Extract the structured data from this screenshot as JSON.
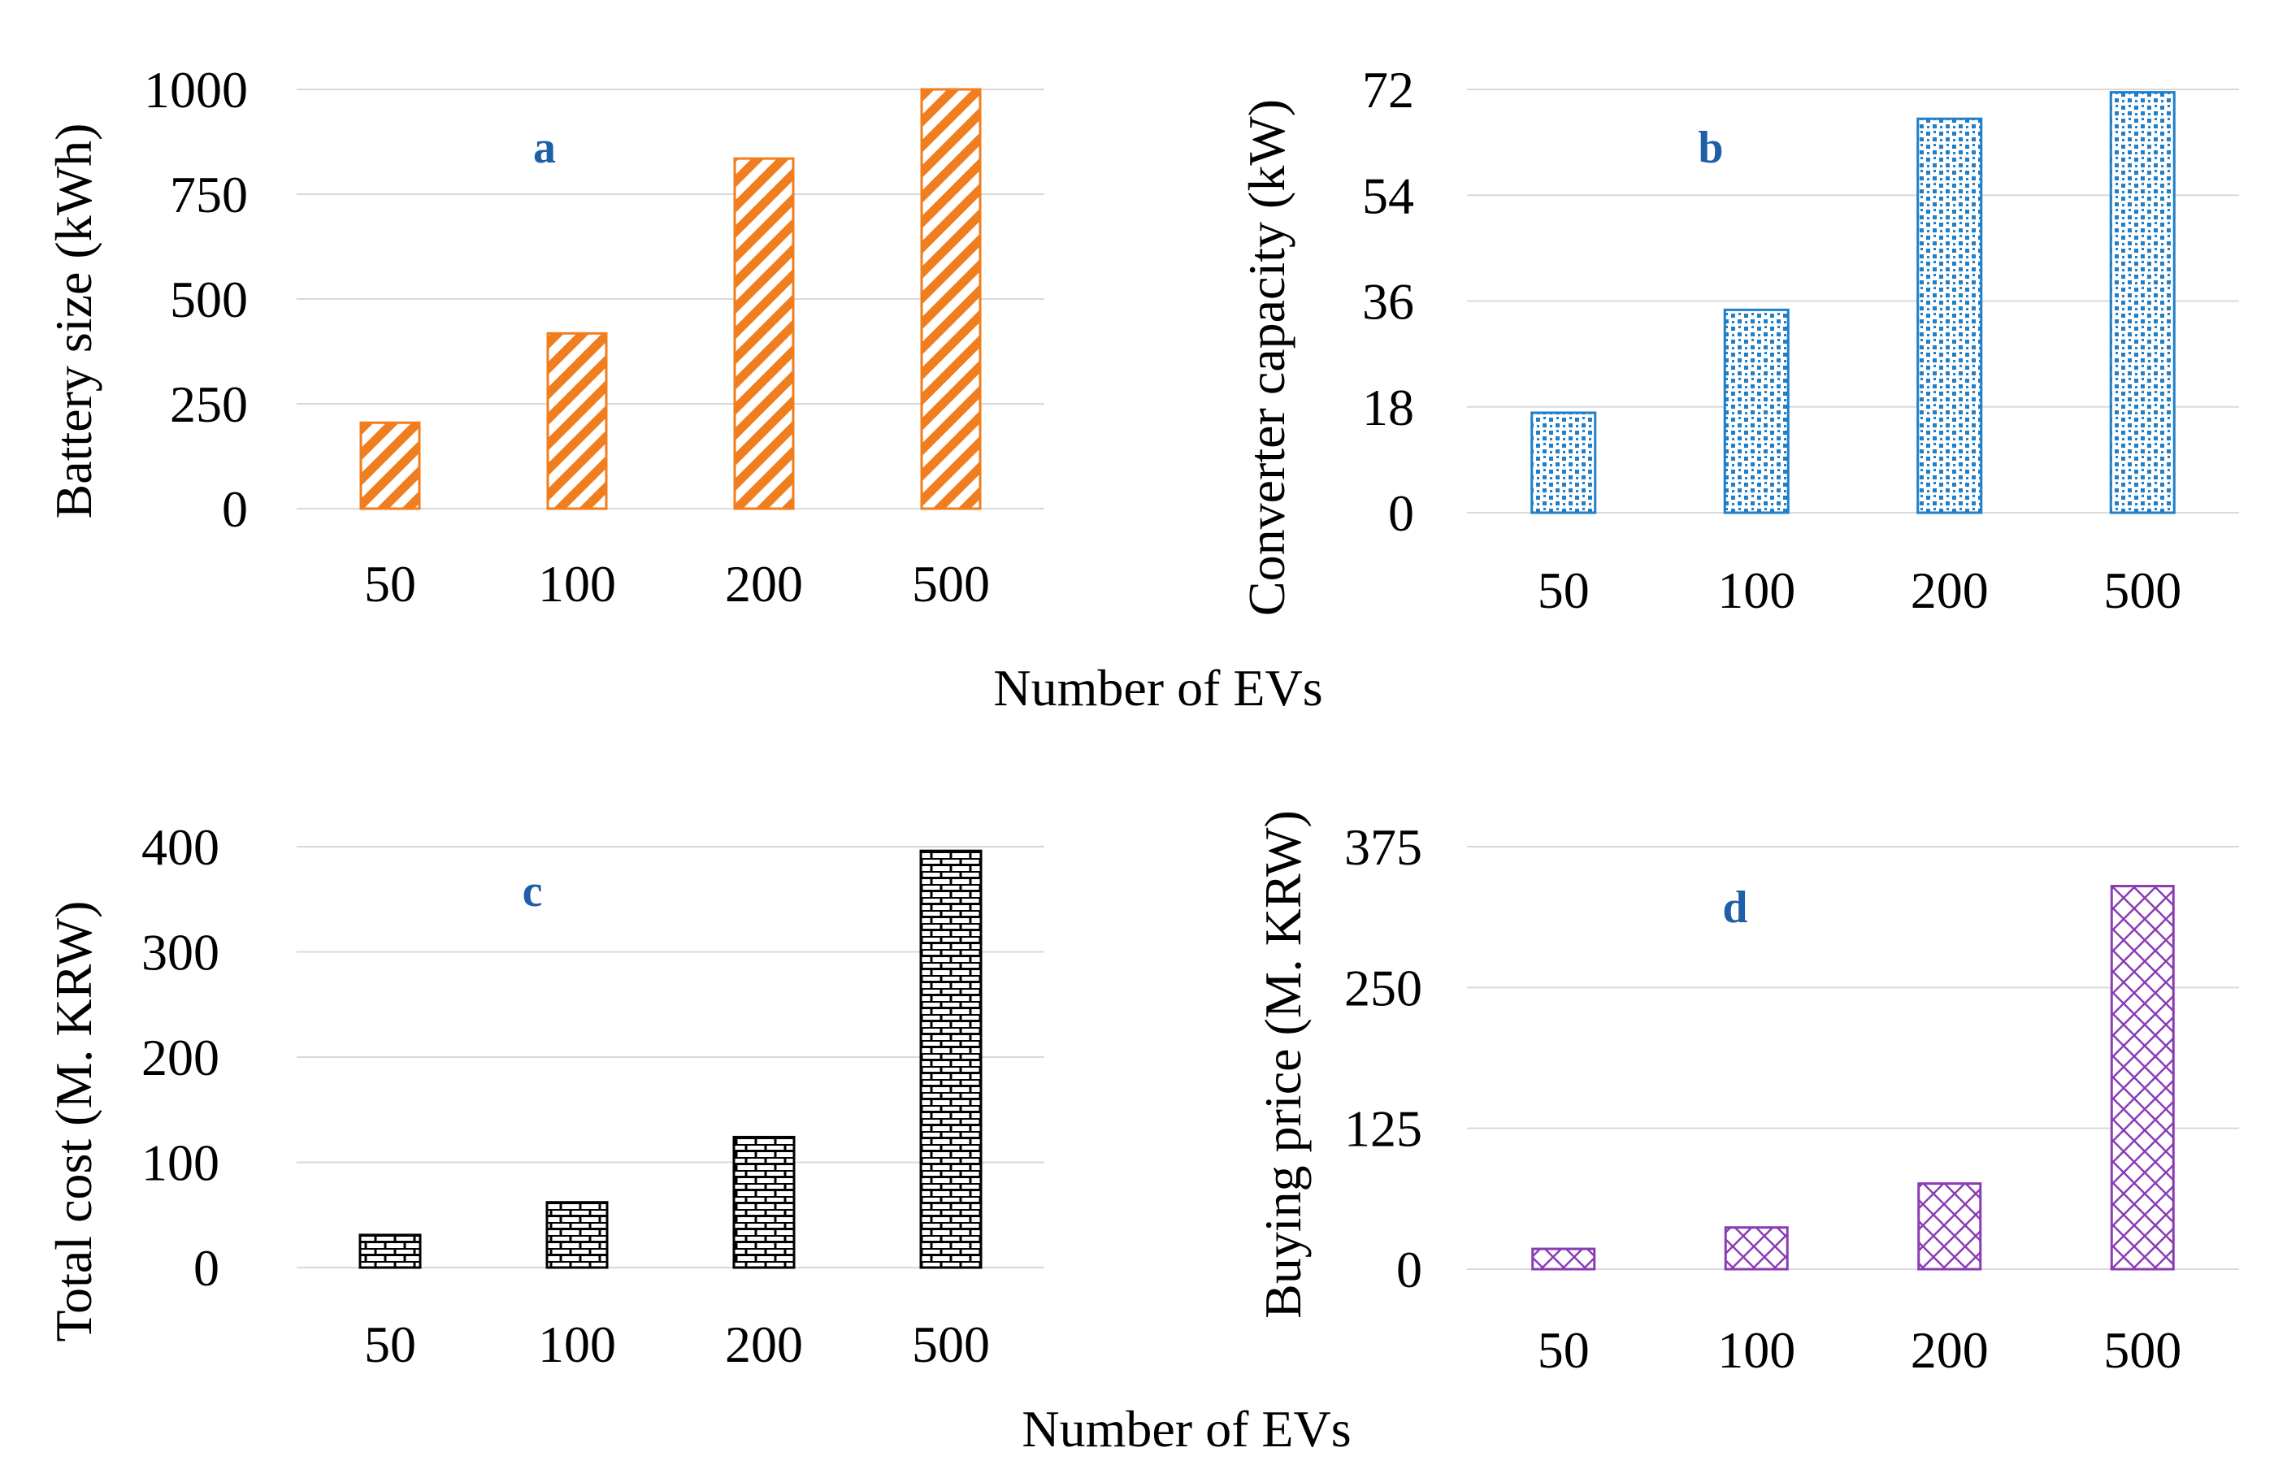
{
  "figure": {
    "xlabel_top": "Number of EVs",
    "xlabel_bottom": "Number of EVs"
  },
  "chart_data": [
    {
      "type": "bar",
      "panel": "a",
      "categories": [
        "50",
        "100",
        "200",
        "500"
      ],
      "values": [
        205,
        418,
        835,
        1000
      ],
      "ylabel": "Battery size (kWh)",
      "ylim": [
        0,
        1000
      ],
      "yticks": [
        "0",
        "250",
        "500",
        "750",
        "1000"
      ],
      "ytick_values": [
        0,
        250,
        500,
        750,
        1000
      ],
      "grid": true,
      "color": "#f07d1e",
      "pattern": "diagonal-stripes"
    },
    {
      "type": "bar",
      "panel": "b",
      "categories": [
        "50",
        "100",
        "200",
        "500"
      ],
      "values": [
        17,
        34.5,
        67,
        71.5
      ],
      "ylabel": "Converter capacity (kW)",
      "ylim": [
        0,
        72
      ],
      "yticks": [
        "0",
        "18",
        "36",
        "54",
        "72"
      ],
      "ytick_values": [
        0,
        18,
        36,
        54,
        72
      ],
      "grid": true,
      "color": "#1f7fc8",
      "pattern": "dots"
    },
    {
      "type": "bar",
      "panel": "c",
      "categories": [
        "50",
        "100",
        "200",
        "500"
      ],
      "values": [
        31,
        62,
        124,
        396
      ],
      "ylabel": "Total cost (M. KRW)",
      "ylim": [
        0,
        400
      ],
      "yticks": [
        "0",
        "100",
        "200",
        "300",
        "400"
      ],
      "ytick_values": [
        0,
        100,
        200,
        300,
        400
      ],
      "grid": true,
      "color": "#000000",
      "pattern": "bricks"
    },
    {
      "type": "bar",
      "panel": "d",
      "categories": [
        "50",
        "100",
        "200",
        "500"
      ],
      "values": [
        18,
        37,
        76,
        340
      ],
      "ylabel": "Buying price (M. KRW)",
      "ylim": [
        0,
        375
      ],
      "yticks": [
        "0",
        "125",
        "250",
        "375"
      ],
      "ytick_values": [
        0,
        125,
        250,
        375
      ],
      "grid": true,
      "color": "#8a3cb5",
      "pattern": "cross-hatch"
    }
  ]
}
